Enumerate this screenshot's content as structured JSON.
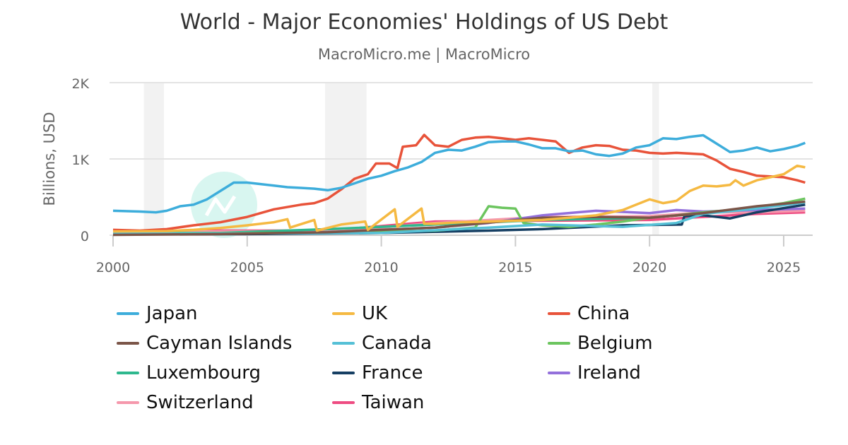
{
  "title": "World - Major Economies' Holdings of US Debt",
  "subtitle": "MacroMicro.me | MacroMicro",
  "watermark": "MacroMicro",
  "chart_data": {
    "type": "line",
    "title": "World - Major Economies' Holdings of US Debt",
    "ylabel": "Billions, USD",
    "xlabel": "",
    "xlim": [
      2000,
      2026.1
    ],
    "ylim": [
      0,
      2000
    ],
    "x_ticks": [
      2000,
      2005,
      2010,
      2015,
      2020,
      2025
    ],
    "x_tick_labels": [
      "2000",
      "2005",
      "2010",
      "2015",
      "2020",
      "2025"
    ],
    "y_ticks": [
      0,
      1000,
      2000
    ],
    "y_tick_labels": [
      "0",
      "1K",
      "2K"
    ],
    "grid": true,
    "legend_position": "bottom",
    "recession_bands": [
      [
        2001.15,
        2001.9
      ],
      [
        2007.9,
        2009.45
      ],
      [
        2020.1,
        2020.35
      ]
    ],
    "series": [
      {
        "name": "Japan",
        "color": "#3DADDB",
        "points": [
          [
            2000,
            320
          ],
          [
            2001,
            310
          ],
          [
            2001.6,
            300
          ],
          [
            2002,
            320
          ],
          [
            2002.5,
            380
          ],
          [
            2003,
            400
          ],
          [
            2003.5,
            470
          ],
          [
            2004,
            580
          ],
          [
            2004.5,
            690
          ],
          [
            2005,
            690
          ],
          [
            2005.5,
            670
          ],
          [
            2006,
            650
          ],
          [
            2006.5,
            630
          ],
          [
            2007,
            620
          ],
          [
            2007.5,
            610
          ],
          [
            2008,
            590
          ],
          [
            2008.5,
            620
          ],
          [
            2009,
            680
          ],
          [
            2009.5,
            740
          ],
          [
            2010,
            780
          ],
          [
            2010.5,
            840
          ],
          [
            2011,
            890
          ],
          [
            2011.5,
            960
          ],
          [
            2012,
            1080
          ],
          [
            2012.5,
            1120
          ],
          [
            2013,
            1110
          ],
          [
            2013.5,
            1160
          ],
          [
            2014,
            1220
          ],
          [
            2014.5,
            1230
          ],
          [
            2015,
            1230
          ],
          [
            2015.5,
            1190
          ],
          [
            2016,
            1140
          ],
          [
            2016.5,
            1140
          ],
          [
            2017,
            1100
          ],
          [
            2017.5,
            1110
          ],
          [
            2018,
            1060
          ],
          [
            2018.5,
            1040
          ],
          [
            2019,
            1070
          ],
          [
            2019.5,
            1150
          ],
          [
            2020,
            1180
          ],
          [
            2020.5,
            1270
          ],
          [
            2021,
            1260
          ],
          [
            2021.5,
            1290
          ],
          [
            2022,
            1310
          ],
          [
            2022.5,
            1200
          ],
          [
            2023,
            1090
          ],
          [
            2023.5,
            1110
          ],
          [
            2024,
            1150
          ],
          [
            2024.5,
            1100
          ],
          [
            2025,
            1130
          ],
          [
            2025.5,
            1170
          ],
          [
            2025.8,
            1210
          ]
        ]
      },
      {
        "name": "UK",
        "color": "#F5B942",
        "points": [
          [
            2000,
            50
          ],
          [
            2002,
            55
          ],
          [
            2003,
            70
          ],
          [
            2004,
            95
          ],
          [
            2005,
            130
          ],
          [
            2006,
            170
          ],
          [
            2006.5,
            210
          ],
          [
            2006.6,
            100
          ],
          [
            2007.5,
            200
          ],
          [
            2007.6,
            60
          ],
          [
            2008.5,
            140
          ],
          [
            2009.4,
            180
          ],
          [
            2009.5,
            70
          ],
          [
            2010.5,
            340
          ],
          [
            2010.6,
            110
          ],
          [
            2011.5,
            350
          ],
          [
            2011.6,
            150
          ],
          [
            2012,
            150
          ],
          [
            2013,
            170
          ],
          [
            2014,
            180
          ],
          [
            2015,
            190
          ],
          [
            2016,
            200
          ],
          [
            2017,
            230
          ],
          [
            2018,
            260
          ],
          [
            2019,
            330
          ],
          [
            2019.5,
            400
          ],
          [
            2020,
            470
          ],
          [
            2020.5,
            420
          ],
          [
            2021,
            450
          ],
          [
            2021.5,
            580
          ],
          [
            2022,
            650
          ],
          [
            2022.5,
            640
          ],
          [
            2023,
            660
          ],
          [
            2023.2,
            720
          ],
          [
            2023.5,
            650
          ],
          [
            2024,
            720
          ],
          [
            2024.5,
            760
          ],
          [
            2025,
            800
          ],
          [
            2025.5,
            910
          ],
          [
            2025.8,
            890
          ]
        ]
      },
      {
        "name": "China",
        "color": "#E8533A",
        "points": [
          [
            2000,
            70
          ],
          [
            2001,
            60
          ],
          [
            2002,
            80
          ],
          [
            2003,
            130
          ],
          [
            2004,
            170
          ],
          [
            2005,
            240
          ],
          [
            2006,
            340
          ],
          [
            2007,
            400
          ],
          [
            2007.5,
            420
          ],
          [
            2008,
            480
          ],
          [
            2008.5,
            600
          ],
          [
            2009,
            740
          ],
          [
            2009.5,
            800
          ],
          [
            2009.8,
            940
          ],
          [
            2010.3,
            940
          ],
          [
            2010.6,
            880
          ],
          [
            2010.8,
            1160
          ],
          [
            2011.3,
            1180
          ],
          [
            2011.6,
            1315
          ],
          [
            2012,
            1180
          ],
          [
            2012.5,
            1160
          ],
          [
            2013,
            1250
          ],
          [
            2013.5,
            1280
          ],
          [
            2014,
            1290
          ],
          [
            2014.5,
            1270
          ],
          [
            2015,
            1250
          ],
          [
            2015.5,
            1270
          ],
          [
            2016,
            1250
          ],
          [
            2016.5,
            1230
          ],
          [
            2017,
            1080
          ],
          [
            2017.5,
            1150
          ],
          [
            2018,
            1180
          ],
          [
            2018.5,
            1170
          ],
          [
            2019,
            1120
          ],
          [
            2019.5,
            1110
          ],
          [
            2020,
            1080
          ],
          [
            2020.5,
            1070
          ],
          [
            2021,
            1080
          ],
          [
            2021.5,
            1070
          ],
          [
            2022,
            1060
          ],
          [
            2022.5,
            980
          ],
          [
            2023,
            870
          ],
          [
            2023.5,
            830
          ],
          [
            2024,
            780
          ],
          [
            2024.5,
            770
          ],
          [
            2025,
            760
          ],
          [
            2025.5,
            720
          ],
          [
            2025.8,
            690
          ]
        ]
      },
      {
        "name": "Cayman Islands",
        "color": "#7B5548",
        "points": [
          [
            2000,
            5
          ],
          [
            2004,
            15
          ],
          [
            2008,
            40
          ],
          [
            2012,
            100
          ],
          [
            2016,
            230
          ],
          [
            2018,
            240
          ],
          [
            2020,
            230
          ],
          [
            2022,
            290
          ],
          [
            2024,
            380
          ],
          [
            2025.8,
            440
          ]
        ]
      },
      {
        "name": "Canada",
        "color": "#55C0D6",
        "points": [
          [
            2000,
            20
          ],
          [
            2005,
            25
          ],
          [
            2010,
            30
          ],
          [
            2014,
            100
          ],
          [
            2016,
            140
          ],
          [
            2019,
            110
          ],
          [
            2021,
            160
          ],
          [
            2022,
            280
          ],
          [
            2024,
            350
          ],
          [
            2025.8,
            430
          ]
        ]
      },
      {
        "name": "Belgium",
        "color": "#6CC55F",
        "points": [
          [
            2000,
            30
          ],
          [
            2008,
            30
          ],
          [
            2012,
            60
          ],
          [
            2013.5,
            100
          ],
          [
            2014,
            380
          ],
          [
            2014.5,
            360
          ],
          [
            2015,
            350
          ],
          [
            2015.3,
            160
          ],
          [
            2016,
            130
          ],
          [
            2017,
            110
          ],
          [
            2018,
            140
          ],
          [
            2019,
            180
          ],
          [
            2020,
            230
          ],
          [
            2021,
            260
          ],
          [
            2022,
            300
          ],
          [
            2023,
            330
          ],
          [
            2024,
            370
          ],
          [
            2025,
            420
          ],
          [
            2025.8,
            480
          ]
        ]
      },
      {
        "name": "Luxembourg",
        "color": "#2EB88E",
        "points": [
          [
            2000,
            10
          ],
          [
            2004,
            30
          ],
          [
            2008,
            80
          ],
          [
            2012,
            140
          ],
          [
            2016,
            200
          ],
          [
            2020,
            230
          ],
          [
            2022,
            290
          ],
          [
            2024,
            360
          ],
          [
            2025.8,
            440
          ]
        ]
      },
      {
        "name": "France",
        "color": "#163F63",
        "points": [
          [
            2000,
            10
          ],
          [
            2005,
            15
          ],
          [
            2010,
            30
          ],
          [
            2014,
            60
          ],
          [
            2016,
            80
          ],
          [
            2019,
            130
          ],
          [
            2021.2,
            140
          ],
          [
            2021.3,
            250
          ],
          [
            2022,
            260
          ],
          [
            2023,
            220
          ],
          [
            2024,
            300
          ],
          [
            2025.8,
            400
          ]
        ]
      },
      {
        "name": "Ireland",
        "color": "#9370DB",
        "points": [
          [
            2000,
            10
          ],
          [
            2004,
            20
          ],
          [
            2008,
            40
          ],
          [
            2012,
            100
          ],
          [
            2014,
            160
          ],
          [
            2016,
            260
          ],
          [
            2018,
            320
          ],
          [
            2020,
            290
          ],
          [
            2021,
            330
          ],
          [
            2022,
            310
          ],
          [
            2024,
            330
          ],
          [
            2025.8,
            350
          ]
        ]
      },
      {
        "name": "Switzerland",
        "color": "#F598AC",
        "points": [
          [
            2000,
            40
          ],
          [
            2004,
            50
          ],
          [
            2008,
            60
          ],
          [
            2010,
            100
          ],
          [
            2012,
            160
          ],
          [
            2016,
            240
          ],
          [
            2020,
            250
          ],
          [
            2022,
            300
          ],
          [
            2024,
            300
          ],
          [
            2025.8,
            320
          ]
        ]
      },
      {
        "name": "Taiwan",
        "color": "#EE4C82",
        "points": [
          [
            2000,
            50
          ],
          [
            2004,
            60
          ],
          [
            2008,
            60
          ],
          [
            2010,
            120
          ],
          [
            2012,
            180
          ],
          [
            2016,
            190
          ],
          [
            2020,
            200
          ],
          [
            2022,
            240
          ],
          [
            2024,
            280
          ],
          [
            2025.8,
            300
          ]
        ]
      }
    ]
  }
}
